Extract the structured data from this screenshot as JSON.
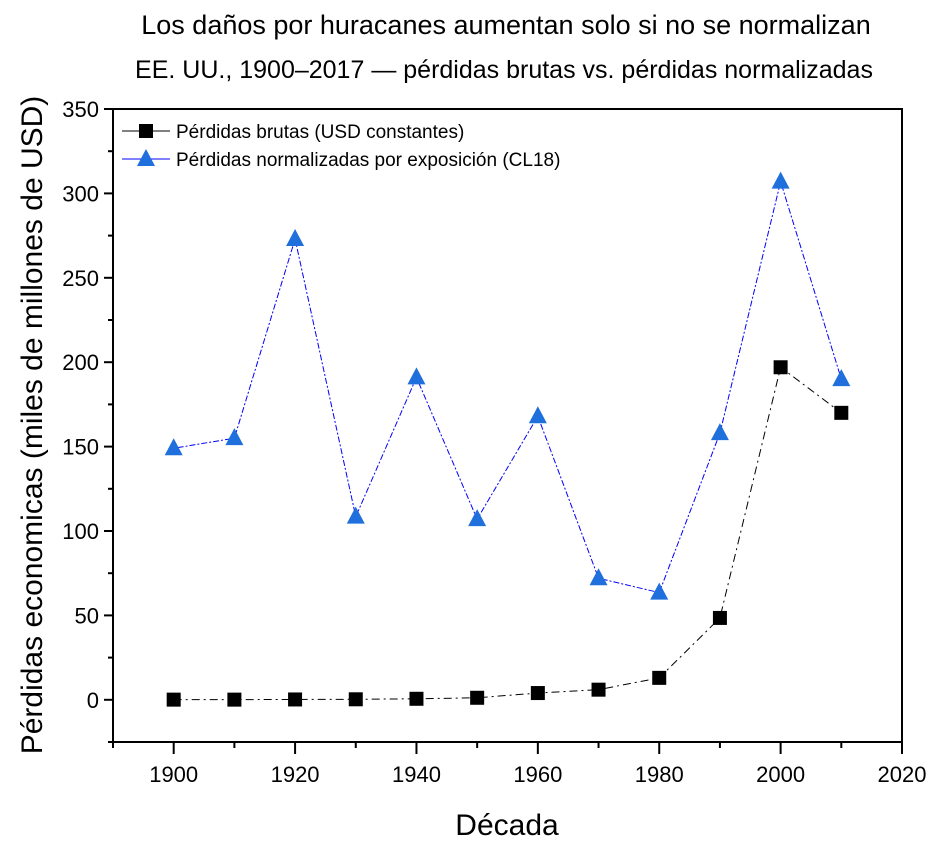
{
  "chart_data": {
    "type": "line",
    "title": "Los daños por huracanes aumentan solo si no se normalizan",
    "subtitle": "EE. UU., 1900–2017 — pérdidas brutas vs. pérdidas normalizadas",
    "xlabel": "Década",
    "ylabel": "Pérdidas economicas (miles de millones de USD)",
    "xlim": [
      1890,
      2020
    ],
    "ylim": [
      -25,
      350
    ],
    "xticks": [
      1900,
      1920,
      1940,
      1960,
      1980,
      2000,
      2020
    ],
    "yticks": [
      0,
      50,
      100,
      150,
      200,
      250,
      300,
      350
    ],
    "grid": false,
    "legend_position": "top-left",
    "x": [
      1900,
      1910,
      1920,
      1930,
      1940,
      1950,
      1960,
      1970,
      1980,
      1990,
      2000,
      2010
    ],
    "series": [
      {
        "name": "Pérdidas brutas (USD constantes)",
        "color": "#000000",
        "marker": "square",
        "values": [
          0.1,
          0.1,
          0.2,
          0.3,
          0.6,
          1.2,
          4,
          6,
          13,
          48.5,
          197,
          170
        ]
      },
      {
        "name": "Pérdidas normalizadas por exposición (CL18)",
        "color": "#1f6fdc",
        "marker": "triangle",
        "values": [
          149,
          155,
          273,
          108.5,
          191,
          107,
          168,
          72,
          63.5,
          158,
          307,
          190
        ]
      }
    ]
  }
}
